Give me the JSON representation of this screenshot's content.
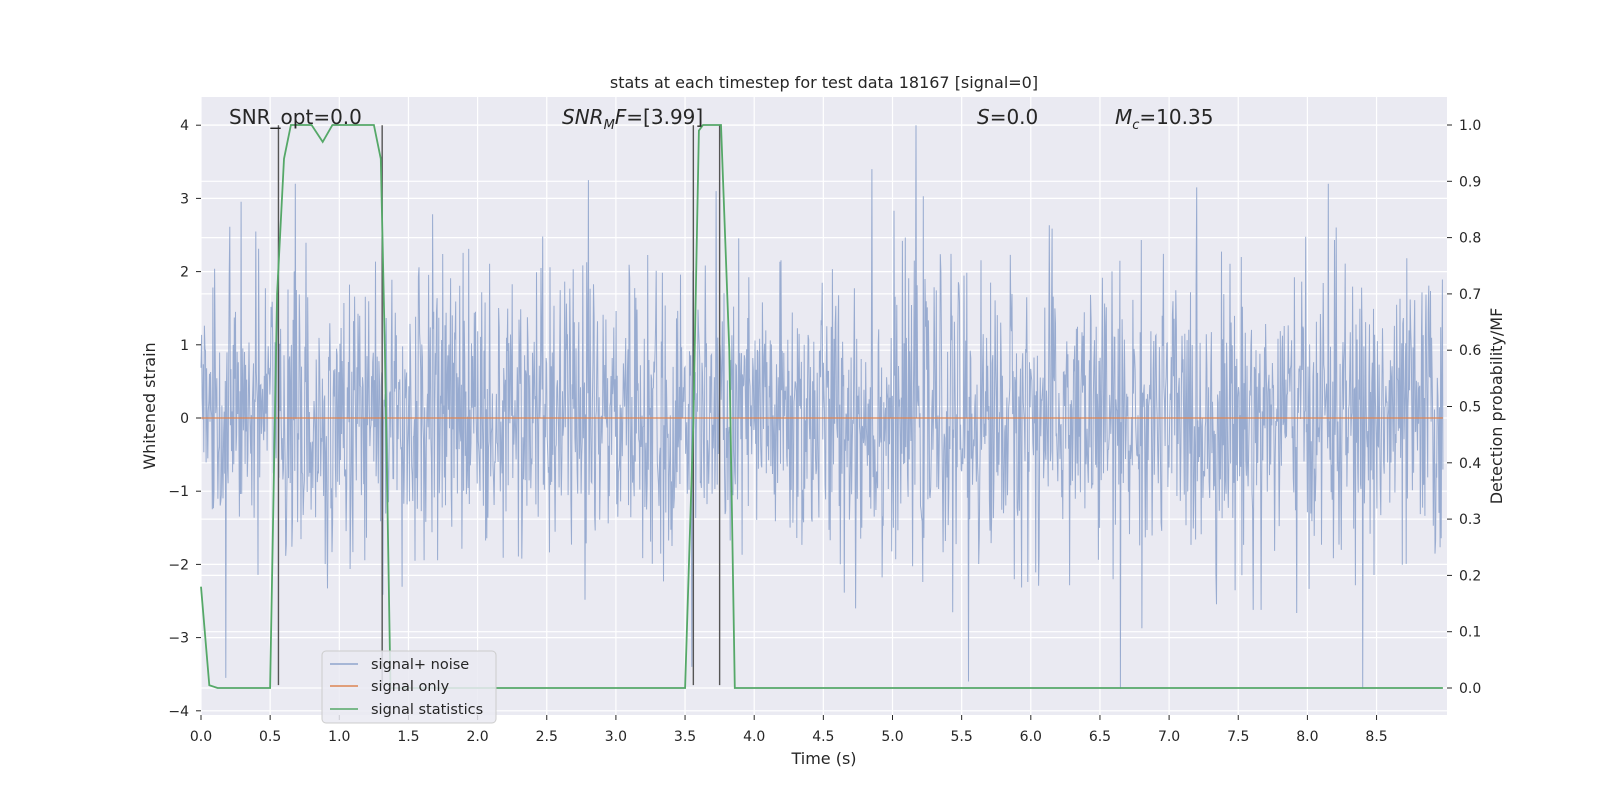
{
  "chart_data": {
    "type": "line",
    "title": "stats at each timestep for test data 18167 [signal=0]",
    "xlabel": "Time (s)",
    "ylabel": "Whitened strain",
    "ylabel_right": "Detection probability/MF",
    "xlim": [
      0,
      8.98
    ],
    "ylim": [
      -4.1,
      4.4
    ],
    "ylim_right": [
      -0.045,
      1.05
    ],
    "x_ticks": [
      "0.0",
      "0.5",
      "1.0",
      "1.5",
      "2.0",
      "2.5",
      "3.0",
      "3.5",
      "4.0",
      "4.5",
      "5.0",
      "5.5",
      "6.0",
      "6.5",
      "7.0",
      "7.5",
      "8.0",
      "8.5"
    ],
    "y_ticks": [
      "−4",
      "−3",
      "−2",
      "−1",
      "0",
      "1",
      "2",
      "3",
      "4"
    ],
    "y_ticks_right": [
      "0.0",
      "0.1",
      "0.2",
      "0.3",
      "0.4",
      "0.5",
      "0.6",
      "0.7",
      "0.8",
      "0.9",
      "1.0"
    ],
    "grid": true,
    "legend_position": "lower-left",
    "annotations": {
      "snr_opt": "SNR_opt=0.0",
      "snr_mf_var": "SNR",
      "snr_mf_sub": "M",
      "snr_mf_var2": "F",
      "snr_mf_val": "=[3.99]",
      "s_var": "S",
      "s_val": "=0.0",
      "mc_var": "M",
      "mc_sub": "c",
      "mc_val": "=10.35"
    },
    "series": [
      {
        "name": "signal+ noise",
        "color": "#8fa4cc",
        "description_type": "noise",
        "x_range": [
          0,
          8.98
        ],
        "typical_band": [
          -1.35,
          1.7
        ],
        "peaks": [
          {
            "x": 0.68,
            "y": 3.2
          },
          {
            "x": 2.8,
            "y": 3.25
          },
          {
            "x": 3.55,
            "y": -3.4
          },
          {
            "x": 5.17,
            "y": 4.0
          },
          {
            "x": 4.85,
            "y": 3.4
          },
          {
            "x": 5.55,
            "y": -3.6
          },
          {
            "x": 6.65,
            "y": -3.7
          },
          {
            "x": 8.4,
            "y": -3.7
          },
          {
            "x": 8.15,
            "y": 3.2
          },
          {
            "x": 0.18,
            "y": -3.55
          },
          {
            "x": 7.2,
            "y": 3.15
          }
        ]
      },
      {
        "name": "signal only",
        "color": "#dd8452",
        "x": [
          0,
          8.98
        ],
        "y": [
          0,
          0
        ]
      },
      {
        "name": "signal statistics",
        "color": "#55a868",
        "axis": "right",
        "x": [
          0,
          0.06,
          0.12,
          0.5,
          0.55,
          0.6,
          0.65,
          0.8,
          0.88,
          0.95,
          1.1,
          1.25,
          1.3,
          1.33,
          1.37,
          1.5,
          3.0,
          3.5,
          3.56,
          3.6,
          3.63,
          3.7,
          3.76,
          3.82,
          3.86,
          4.0,
          8.98
        ],
        "y": [
          0.18,
          0.005,
          0.0,
          0.0,
          0.7,
          0.94,
          1.0,
          1.0,
          0.97,
          1.0,
          1.0,
          1.0,
          0.94,
          0.6,
          0.0,
          0.0,
          0.0,
          0.0,
          0.47,
          0.99,
          1.0,
          1.0,
          1.0,
          0.6,
          0.0,
          0.0,
          0.0
        ]
      }
    ],
    "vertical_markers": [
      {
        "x": 0.56,
        "y_top": 4.0,
        "y_bottom": -3.65
      },
      {
        "x": 1.31,
        "y_top": 4.0,
        "y_bottom": -3.65
      },
      {
        "x": 3.56,
        "y_top": 4.0,
        "y_bottom": -3.65
      },
      {
        "x": 3.75,
        "y_top": 4.0,
        "y_bottom": -3.65
      }
    ]
  }
}
